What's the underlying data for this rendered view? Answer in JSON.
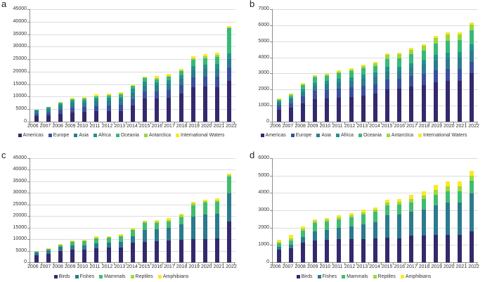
{
  "figure": {
    "background": "#ffffff",
    "grid_color": "#dcdcdc",
    "axis_color": "#8c8c8c",
    "text_color": "#333333"
  },
  "chart_data": [
    {
      "type": "bar",
      "stacked": true,
      "panel_label": "a",
      "title": "",
      "xlabel": "",
      "ylabel": "",
      "ylim": [
        0,
        45000
      ],
      "grid": true,
      "legend_position": "bottom",
      "y_tick_labels": [
        "0",
        "5000",
        "10000",
        "15000",
        "20000",
        "25000",
        "30000",
        "35000",
        "40000",
        "45000"
      ],
      "categories": [
        "2006",
        "2007",
        "2008",
        "2009",
        "2010",
        "2011",
        "2012",
        "2013",
        "2014",
        "2015",
        "2016",
        "2017",
        "2018",
        "2019",
        "2020",
        "2021",
        "2022"
      ],
      "series": [
        {
          "name": "Americas",
          "color": "#33296d",
          "values": [
            2300,
            2600,
            3150,
            3800,
            3900,
            4100,
            4200,
            4350,
            6500,
            9300,
            9350,
            9650,
            11200,
            13700,
            14000,
            13900,
            16300
          ]
        },
        {
          "name": "Europe",
          "color": "#3b4f9d",
          "values": [
            850,
            1100,
            1650,
            1850,
            1950,
            2200,
            2300,
            2400,
            2600,
            2750,
            2850,
            3150,
            3450,
            3900,
            4100,
            4200,
            5400
          ]
        },
        {
          "name": "Asia",
          "color": "#2c7c8e",
          "values": [
            950,
            1200,
            1500,
            1750,
            1750,
            1950,
            2050,
            2150,
            2600,
            2300,
            2350,
            2400,
            2600,
            2800,
            2900,
            3000,
            3300
          ]
        },
        {
          "name": "Africa",
          "color": "#21948c",
          "values": [
            350,
            550,
            750,
            950,
            950,
            1050,
            1000,
            1050,
            1500,
            1600,
            1250,
            1500,
            1450,
            1800,
            1800,
            1900,
            2400
          ]
        },
        {
          "name": "Oceania",
          "color": "#38b977",
          "values": [
            250,
            350,
            550,
            650,
            650,
            800,
            950,
            950,
            1100,
            1500,
            1200,
            1400,
            1500,
            2500,
            2600,
            2800,
            9900
          ]
        },
        {
          "name": "Antarctica",
          "color": "#97d83f",
          "values": [
            50,
            50,
            80,
            100,
            140,
            150,
            250,
            250,
            200,
            250,
            400,
            300,
            350,
            700,
            800,
            900,
            500
          ]
        },
        {
          "name": "International Waters",
          "color": "#fde725",
          "values": [
            80,
            90,
            300,
            360,
            400,
            640,
            450,
            680,
            400,
            300,
            800,
            700,
            550,
            800,
            900,
            800,
            550
          ]
        }
      ]
    },
    {
      "type": "bar",
      "stacked": true,
      "panel_label": "b",
      "title": "",
      "xlabel": "",
      "ylabel": "",
      "ylim": [
        0,
        7000
      ],
      "grid": true,
      "legend_position": "bottom",
      "y_tick_labels": [
        "0",
        "1000",
        "2000",
        "3000",
        "4000",
        "5000",
        "6000",
        "7000"
      ],
      "categories": [
        "2006",
        "2007",
        "2008",
        "2009",
        "2010",
        "2011",
        "2012",
        "2013",
        "2014",
        "2015",
        "2016",
        "2017",
        "2018",
        "2019",
        "2020",
        "2021",
        "2022"
      ],
      "series": [
        {
          "name": "Americas",
          "color": "#33296d",
          "values": [
            760,
            870,
            1150,
            1390,
            1450,
            1480,
            1520,
            1630,
            1750,
            2010,
            2040,
            2170,
            2290,
            2460,
            2530,
            2530,
            3040
          ]
        },
        {
          "name": "Europe",
          "color": "#3b4f9d",
          "values": [
            250,
            280,
            410,
            520,
            530,
            590,
            610,
            600,
            590,
            640,
            640,
            660,
            690,
            740,
            750,
            760,
            700
          ]
        },
        {
          "name": "Asia",
          "color": "#2c7c8e",
          "values": [
            190,
            230,
            280,
            320,
            340,
            380,
            410,
            440,
            450,
            470,
            470,
            490,
            550,
            630,
            680,
            680,
            700
          ]
        },
        {
          "name": "Africa",
          "color": "#21948c",
          "values": [
            80,
            120,
            170,
            190,
            200,
            220,
            240,
            250,
            260,
            290,
            290,
            310,
            320,
            350,
            340,
            350,
            390
          ]
        },
        {
          "name": "Oceania",
          "color": "#38b977",
          "values": [
            80,
            140,
            250,
            320,
            310,
            340,
            360,
            390,
            420,
            490,
            500,
            550,
            570,
            670,
            750,
            750,
            880
          ]
        },
        {
          "name": "Antarctica",
          "color": "#97d83f",
          "values": [
            30,
            50,
            60,
            100,
            100,
            110,
            120,
            160,
            160,
            280,
            280,
            300,
            320,
            380,
            400,
            380,
            350
          ]
        },
        {
          "name": "International Waters",
          "color": "#fde725",
          "values": [
            60,
            70,
            70,
            70,
            60,
            60,
            70,
            90,
            100,
            90,
            90,
            100,
            90,
            110,
            100,
            100,
            90
          ]
        }
      ]
    },
    {
      "type": "bar",
      "stacked": true,
      "panel_label": "c",
      "title": "",
      "xlabel": "",
      "ylabel": "",
      "ylim": [
        0,
        45000
      ],
      "grid": true,
      "legend_position": "bottom",
      "y_tick_labels": [
        "0",
        "5000",
        "10000",
        "15000",
        "20000",
        "25000",
        "30000",
        "35000",
        "40000",
        "45000"
      ],
      "categories": [
        "2006",
        "2007",
        "2008",
        "2009",
        "2010",
        "2011",
        "2012",
        "2013",
        "2014",
        "2015",
        "2016",
        "2017",
        "2018",
        "2019",
        "2020",
        "2021",
        "2022"
      ],
      "series": [
        {
          "name": "Birds",
          "color": "#33296d",
          "values": [
            3100,
            3530,
            4740,
            5350,
            5450,
            6150,
            6250,
            6350,
            8600,
            8900,
            9000,
            9400,
            9600,
            10000,
            10200,
            10300,
            17500
          ]
        },
        {
          "name": "Fishes",
          "color": "#2b7a8e",
          "values": [
            1300,
            1720,
            1920,
            1900,
            2000,
            2000,
            2200,
            2500,
            2600,
            5200,
            5250,
            5450,
            6850,
            9800,
            10600,
            10600,
            12300
          ]
        },
        {
          "name": "Mammals",
          "color": "#40bc70",
          "values": [
            250,
            400,
            800,
            1600,
            1700,
            2250,
            2200,
            2450,
            2800,
            3000,
            2700,
            2850,
            3150,
            5000,
            5200,
            5300,
            7200
          ]
        },
        {
          "name": "Reptiles",
          "color": "#9dd93b",
          "values": [
            100,
            150,
            250,
            300,
            300,
            350,
            350,
            350,
            400,
            400,
            750,
            700,
            750,
            800,
            600,
            700,
            700
          ]
        },
        {
          "name": "Amphibians",
          "color": "#fde725",
          "values": [
            100,
            150,
            240,
            350,
            350,
            350,
            400,
            450,
            500,
            500,
            500,
            700,
            750,
            700,
            600,
            700,
            650
          ]
        }
      ]
    },
    {
      "type": "bar",
      "stacked": true,
      "panel_label": "d",
      "title": "",
      "xlabel": "",
      "ylabel": "",
      "ylim": [
        0,
        6000
      ],
      "grid": true,
      "legend_position": "bottom",
      "y_tick_labels": [
        "0",
        "1000",
        "2000",
        "3000",
        "4000",
        "5000",
        "6000"
      ],
      "categories": [
        "2006",
        "2007",
        "2008",
        "2009",
        "2010",
        "2011",
        "2012",
        "2013",
        "2014",
        "2015",
        "2016",
        "2017",
        "2018",
        "2019",
        "2020",
        "2021",
        "2022"
      ],
      "series": [
        {
          "name": "Birds",
          "color": "#33296d",
          "values": [
            750,
            830,
            1120,
            1250,
            1280,
            1320,
            1320,
            1360,
            1400,
            1410,
            1400,
            1530,
            1550,
            1590,
            1600,
            1600,
            1800
          ]
        },
        {
          "name": "Fishes",
          "color": "#2b7a8e",
          "values": [
            140,
            170,
            360,
            550,
            600,
            650,
            750,
            850,
            930,
            1310,
            1350,
            1380,
            1490,
            1680,
            1830,
            1830,
            2160
          ]
        },
        {
          "name": "Mammals",
          "color": "#40bc70",
          "values": [
            200,
            270,
            360,
            460,
            480,
            510,
            510,
            550,
            580,
            550,
            560,
            550,
            590,
            630,
            650,
            670,
            760
          ]
        },
        {
          "name": "Reptiles",
          "color": "#9dd93b",
          "values": [
            90,
            120,
            110,
            120,
            100,
            120,
            130,
            130,
            130,
            180,
            180,
            200,
            220,
            270,
            290,
            300,
            260
          ]
        },
        {
          "name": "Amphibians",
          "color": "#fde725",
          "values": [
            110,
            170,
            110,
            100,
            100,
            120,
            120,
            140,
            140,
            180,
            160,
            240,
            250,
            300,
            290,
            270,
            310
          ]
        }
      ]
    }
  ]
}
